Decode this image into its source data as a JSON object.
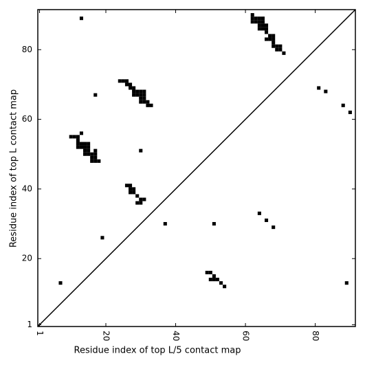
{
  "chart_data": {
    "type": "scatter",
    "xlabel": "Residue index of top L/5 contact map",
    "ylabel": "Residue index of top L contact map",
    "xlim": [
      0.5,
      91.5
    ],
    "ylim": [
      0.5,
      91.5
    ],
    "xticks": [
      1,
      20,
      40,
      60,
      80
    ],
    "yticks": [
      1,
      20,
      40,
      60,
      80
    ],
    "color": "#000000",
    "x": [
      13,
      17,
      62,
      62,
      63,
      64,
      65,
      62,
      63,
      64,
      65,
      64,
      65,
      66,
      64,
      65,
      66,
      66,
      67,
      68,
      66,
      67,
      68,
      68,
      68,
      69,
      70,
      69,
      70,
      71,
      81,
      83,
      88,
      90,
      24,
      25,
      26,
      26,
      27,
      27,
      28,
      28,
      29,
      30,
      31,
      28,
      29,
      30,
      31,
      30,
      31,
      30,
      31,
      32,
      32,
      33,
      30,
      13,
      10,
      11,
      12,
      12,
      12,
      13,
      14,
      15,
      12,
      13,
      14,
      15,
      14,
      15,
      17,
      14,
      15,
      16,
      17,
      16,
      17,
      16,
      17,
      18,
      26,
      27,
      27,
      28,
      27,
      28,
      29,
      30,
      31,
      29,
      30,
      37,
      51,
      19,
      7,
      64,
      66,
      68,
      89,
      49,
      50,
      51,
      50,
      51,
      52,
      53,
      54
    ],
    "y": [
      89,
      67,
      90,
      89,
      89,
      89,
      89,
      88,
      88,
      88,
      88,
      87,
      87,
      87,
      86,
      86,
      86,
      85,
      84,
      84,
      83,
      83,
      83,
      82,
      81,
      81,
      81,
      80,
      80,
      79,
      69,
      68,
      64,
      62,
      71,
      71,
      71,
      70,
      70,
      69,
      69,
      68,
      68,
      68,
      68,
      67,
      67,
      67,
      67,
      66,
      66,
      65,
      65,
      65,
      64,
      64,
      51,
      56,
      55,
      55,
      55,
      54,
      53,
      53,
      53,
      53,
      52,
      52,
      52,
      52,
      51,
      51,
      51,
      50,
      50,
      50,
      50,
      49,
      49,
      48,
      48,
      48,
      41,
      41,
      40,
      40,
      39,
      39,
      38,
      37,
      37,
      36,
      36,
      30,
      30,
      26,
      13,
      33,
      31,
      29,
      13,
      16,
      16,
      15,
      14,
      14,
      14,
      13,
      12
    ]
  }
}
